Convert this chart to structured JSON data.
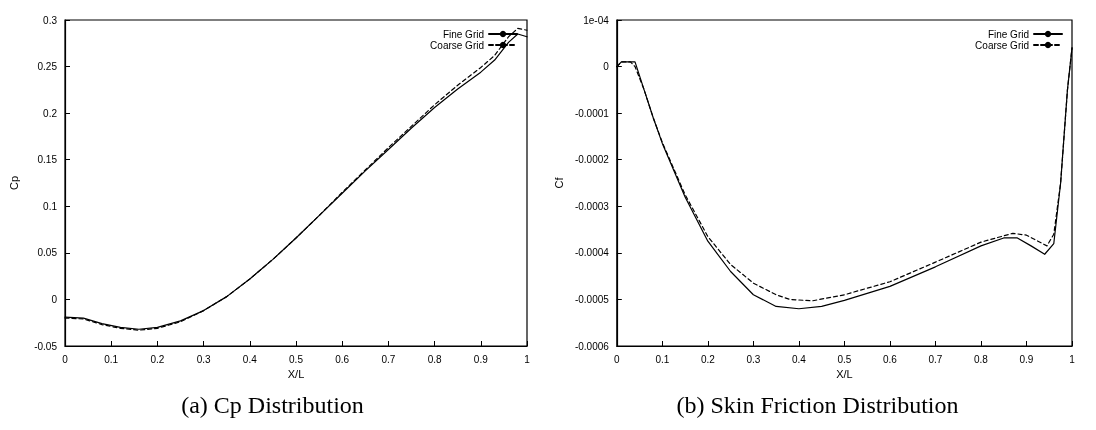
{
  "chart_data": [
    {
      "type": "line",
      "title": "(a) Cp Distribution",
      "xlabel": "X/L",
      "ylabel": "Cp",
      "xlim": [
        0,
        1
      ],
      "xticks": [
        0,
        0.1,
        0.2,
        0.3,
        0.4,
        0.5,
        0.6,
        0.7,
        0.8,
        0.9,
        1
      ],
      "ylim": [
        -0.05,
        0.3
      ],
      "yticks": [
        -0.05,
        0,
        0.05,
        0.1,
        0.15,
        0.2,
        0.25,
        0.3
      ],
      "grid": false,
      "legend": "top right",
      "marker": "none",
      "series": [
        {
          "name": "Fine Grid",
          "color": "#000000",
          "line_style": "solid",
          "x": [
            0,
            0.04,
            0.08,
            0.12,
            0.16,
            0.2,
            0.25,
            0.3,
            0.35,
            0.4,
            0.45,
            0.5,
            0.55,
            0.6,
            0.65,
            0.7,
            0.75,
            0.8,
            0.85,
            0.9,
            0.93,
            0.96,
            0.98,
            1
          ],
          "values": [
            -0.019,
            -0.02,
            -0.026,
            -0.03,
            -0.032,
            -0.03,
            -0.023,
            -0.012,
            0.003,
            0.022,
            0.043,
            0.066,
            0.09,
            0.114,
            0.138,
            0.161,
            0.184,
            0.206,
            0.226,
            0.244,
            0.257,
            0.276,
            0.285,
            0.282
          ]
        },
        {
          "name": "Coarse Grid",
          "color": "#000000",
          "line_style": "dashed",
          "x": [
            0,
            0.04,
            0.08,
            0.12,
            0.16,
            0.2,
            0.25,
            0.3,
            0.35,
            0.4,
            0.45,
            0.5,
            0.55,
            0.6,
            0.65,
            0.7,
            0.75,
            0.8,
            0.85,
            0.9,
            0.93,
            0.96,
            0.98,
            1
          ],
          "values": [
            -0.02,
            -0.021,
            -0.027,
            -0.031,
            -0.033,
            -0.031,
            -0.024,
            -0.012,
            0.003,
            0.022,
            0.043,
            0.066,
            0.09,
            0.115,
            0.139,
            0.163,
            0.186,
            0.209,
            0.23,
            0.249,
            0.262,
            0.282,
            0.291,
            0.289
          ]
        }
      ]
    },
    {
      "type": "line",
      "title": "(b) Skin Friction Distribution",
      "xlabel": "X/L",
      "ylabel": "Cf",
      "xlim": [
        0,
        1
      ],
      "xticks": [
        0,
        0.1,
        0.2,
        0.3,
        0.4,
        0.5,
        0.6,
        0.7,
        0.8,
        0.9,
        1
      ],
      "ylim": [
        -0.0006,
        0.0001
      ],
      "yticks": [
        -0.0006,
        -0.0005,
        -0.0004,
        -0.0003,
        -0.0002,
        -0.0001,
        0,
        {
          "value": 0.0001,
          "label": "1e-04"
        }
      ],
      "grid": false,
      "legend": "top right",
      "marker": "none",
      "series": [
        {
          "name": "Fine Grid",
          "color": "#000000",
          "line_style": "solid",
          "x": [
            0,
            0.01,
            0.03,
            0.04,
            0.06,
            0.08,
            0.1,
            0.15,
            0.2,
            0.25,
            0.3,
            0.35,
            0.4,
            0.45,
            0.5,
            0.6,
            0.7,
            0.8,
            0.85,
            0.88,
            0.91,
            0.94,
            0.96,
            0.975,
            0.99,
            1
          ],
          "values": [
            0,
            1e-05,
            1e-05,
            1e-05,
            -5e-05,
            -0.00011,
            -0.000165,
            -0.00028,
            -0.000375,
            -0.00044,
            -0.00049,
            -0.000515,
            -0.00052,
            -0.000515,
            -0.000502,
            -0.000472,
            -0.00043,
            -0.000385,
            -0.000368,
            -0.000368,
            -0.000385,
            -0.000403,
            -0.00038,
            -0.00025,
            -5e-05,
            4e-05
          ]
        },
        {
          "name": "Coarse Grid",
          "color": "#000000",
          "line_style": "dashed",
          "x": [
            0,
            0.01,
            0.03,
            0.04,
            0.06,
            0.08,
            0.1,
            0.15,
            0.2,
            0.25,
            0.3,
            0.35,
            0.38,
            0.43,
            0.5,
            0.6,
            0.7,
            0.8,
            0.87,
            0.9,
            0.945,
            0.96,
            0.975,
            0.99,
            1
          ],
          "values": [
            0,
            1e-05,
            1e-05,
            0,
            -5e-05,
            -0.00011,
            -0.000163,
            -0.000275,
            -0.000365,
            -0.000425,
            -0.000465,
            -0.00049,
            -0.0005,
            -0.000503,
            -0.00049,
            -0.000462,
            -0.00042,
            -0.000377,
            -0.000358,
            -0.000362,
            -0.000385,
            -0.00036,
            -0.00025,
            -5e-05,
            4e-05
          ]
        }
      ]
    }
  ]
}
